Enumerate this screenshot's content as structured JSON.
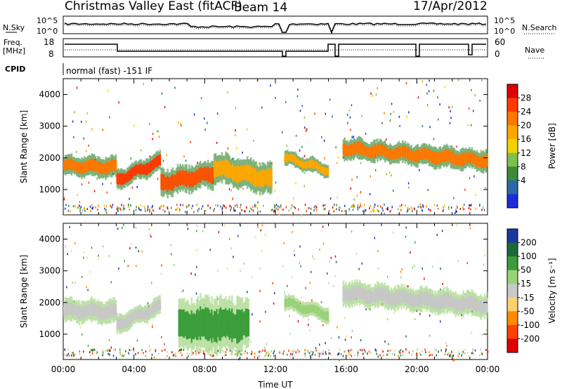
{
  "header": {
    "title": "Christmas Valley East (fitACF)",
    "beam": "Beam 14",
    "date": "17/Apr/2012"
  },
  "aux_panels": {
    "nsky_label": "N.Sky",
    "nsky_ticks": [
      "10^5",
      "10^0"
    ],
    "nsearch_label": "N.Search",
    "freq_label_1": "Freq.",
    "freq_label_2": "[MHz]",
    "freq_ticks": [
      "18",
      "8"
    ],
    "nave_ticks": [
      "60",
      "0"
    ],
    "nave_label": "Nave",
    "cpid_label": "CPID",
    "cpid_value": "normal (fast) -151 IF"
  },
  "chart_data": [
    {
      "type": "heatmap",
      "name": "power",
      "ylabel": "Slant Range [km]",
      "xlabel": "",
      "xlim": [
        "00:00",
        "24:00"
      ],
      "ylim": [
        200,
        4500
      ],
      "yticks": [
        1000,
        2000,
        3000,
        4000
      ],
      "colorbar": {
        "label": "Power [dB]",
        "ticks": [
          "28",
          "24",
          "20",
          "16",
          "12",
          "8",
          "4"
        ],
        "colors": [
          "#e00000",
          "#ff3a00",
          "#ff7800",
          "#ffa800",
          "#f2d200",
          "#7cc24a",
          "#3a8a3a",
          "#2a6aa8",
          "#1c2cd8"
        ]
      },
      "bands": [
        {
          "t": [
            0.0,
            3.0
          ],
          "center": [
            1750,
            1700
          ],
          "width": 350,
          "color": "#ff7800"
        },
        {
          "t": [
            3.0,
            5.5
          ],
          "center": [
            1300,
            1900
          ],
          "width": 320,
          "color": "#ff3a00"
        },
        {
          "t": [
            5.5,
            8.5
          ],
          "center": [
            1200,
            1500
          ],
          "width": 450,
          "color": "#ff5000"
        },
        {
          "t": [
            8.5,
            11.8
          ],
          "center": [
            1700,
            1300
          ],
          "width": 500,
          "color": "#ffa800"
        },
        {
          "t": [
            12.5,
            15.0
          ],
          "center": [
            2000,
            1600
          ],
          "width": 250,
          "color": "#ffa800"
        },
        {
          "t": [
            15.8,
            24.0
          ],
          "center": [
            2300,
            1900
          ],
          "width": 350,
          "color": "#ff7800"
        }
      ]
    },
    {
      "type": "heatmap",
      "name": "velocity",
      "ylabel": "Slant Range [km]",
      "xlabel": "Time UT",
      "xlim": [
        "00:00",
        "24:00"
      ],
      "ylim": [
        200,
        4500
      ],
      "yticks": [
        1000,
        2000,
        3000,
        4000
      ],
      "xticks": [
        "00:00",
        "04:00",
        "08:00",
        "12:00",
        "16:00",
        "20:00",
        "00:00"
      ],
      "colorbar": {
        "label": "Velocity [m s⁻¹]",
        "ticks": [
          "200",
          "100",
          "50",
          "15",
          "-15",
          "-50",
          "-100",
          "-200"
        ],
        "colors": [
          "#1c3a9c",
          "#1c6a3a",
          "#3a9c3a",
          "#9ad27a",
          "#c8c8c8",
          "#ffd070",
          "#ff8c00",
          "#ff4000",
          "#e00000"
        ]
      },
      "bands": [
        {
          "t": [
            0.0,
            3.0
          ],
          "center": [
            1750,
            1700
          ],
          "width": 380,
          "color": "#c8c8c8"
        },
        {
          "t": [
            3.0,
            5.5
          ],
          "center": [
            1300,
            1900
          ],
          "width": 320,
          "color": "#c8c8c8"
        },
        {
          "t": [
            6.5,
            10.5
          ],
          "center": [
            1300,
            1300
          ],
          "width": 900,
          "color": "#3a9c3a"
        },
        {
          "t": [
            12.5,
            15.0
          ],
          "center": [
            2000,
            1600
          ],
          "width": 250,
          "color": "#9ad27a"
        },
        {
          "t": [
            15.8,
            24.0
          ],
          "center": [
            2300,
            1900
          ],
          "width": 400,
          "color": "#c8c8c8"
        }
      ]
    }
  ]
}
